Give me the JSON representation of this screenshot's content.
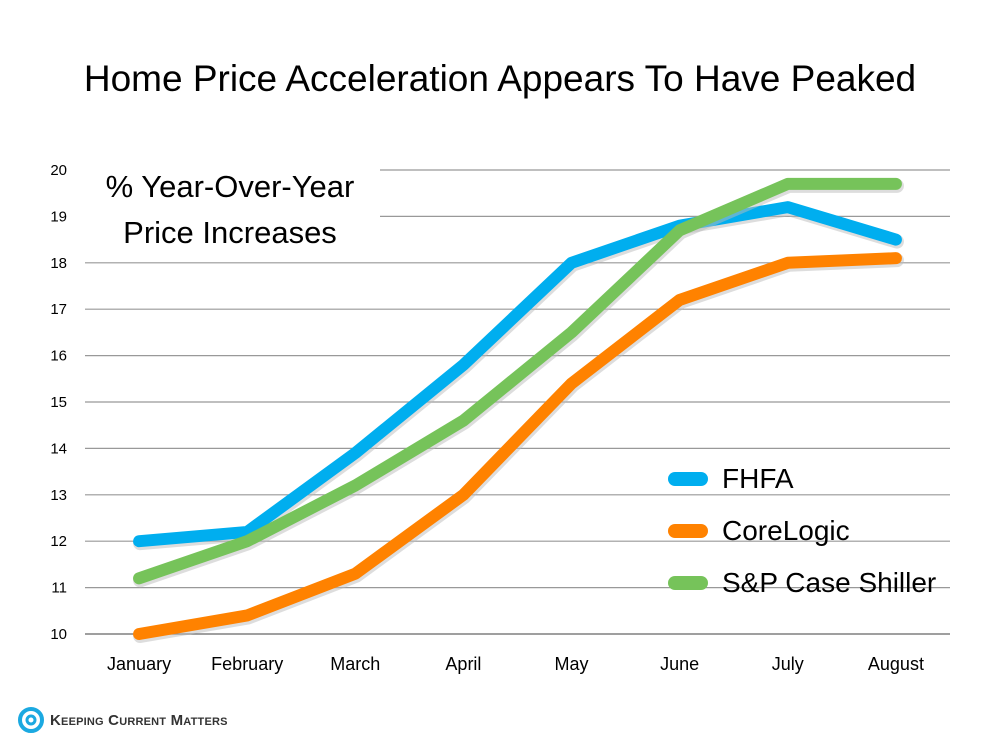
{
  "chart_data": {
    "type": "line",
    "title": "Home Price Acceleration Appears To Have Peaked",
    "annotation": "% Year-Over-Year Price Increases",
    "categories": [
      "January",
      "February",
      "March",
      "April",
      "May",
      "June",
      "July",
      "August"
    ],
    "ylim": [
      10,
      20
    ],
    "yticks": [
      10,
      11,
      12,
      13,
      14,
      15,
      16,
      17,
      18,
      19,
      20
    ],
    "grid": true,
    "legend_position": "bottom-right",
    "series": [
      {
        "name": "FHFA",
        "color": "#00AEEF",
        "values": [
          12.0,
          12.2,
          13.9,
          15.8,
          18.0,
          18.8,
          19.2,
          18.5
        ]
      },
      {
        "name": "CoreLogic",
        "color": "#FF8200",
        "values": [
          10.0,
          10.4,
          11.3,
          13.0,
          15.4,
          17.2,
          18.0,
          18.1
        ]
      },
      {
        "name": "S&P Case Shiller",
        "color": "#76C35A",
        "values": [
          11.2,
          12.0,
          13.2,
          14.6,
          16.5,
          18.7,
          19.7,
          19.7
        ]
      }
    ]
  },
  "footer": {
    "logo_text": "Keeping Current Matters"
  }
}
